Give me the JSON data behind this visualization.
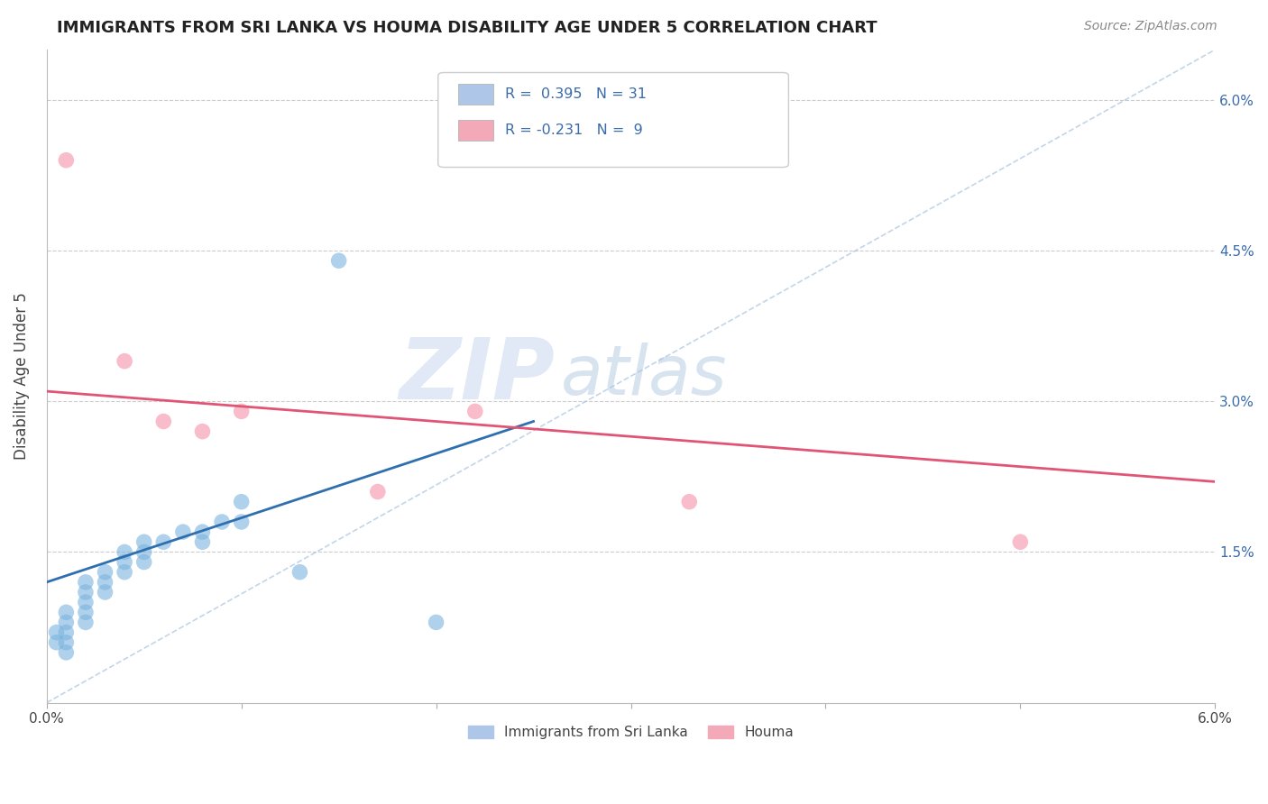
{
  "title": "IMMIGRANTS FROM SRI LANKA VS HOUMA DISABILITY AGE UNDER 5 CORRELATION CHART",
  "source": "Source: ZipAtlas.com",
  "ylabel": "Disability Age Under 5",
  "xmin": 0.0,
  "xmax": 0.06,
  "ymin": 0.0,
  "ymax": 0.065,
  "yticks": [
    0.0,
    0.015,
    0.03,
    0.045,
    0.06
  ],
  "legend_entries": [
    {
      "label": "Immigrants from Sri Lanka",
      "color": "#aec6e8"
    },
    {
      "label": "Houma",
      "color": "#f4a9b8"
    }
  ],
  "r_blue": 0.395,
  "n_blue": 31,
  "r_pink": -0.231,
  "n_pink": 9,
  "blue_scatter_color": "#7ab3df",
  "pink_scatter_color": "#f490a8",
  "blue_line_color": "#2e6faf",
  "pink_line_color": "#e05575",
  "blue_line": [
    [
      0.0,
      0.012
    ],
    [
      0.025,
      0.028
    ]
  ],
  "pink_line": [
    [
      0.0,
      0.031
    ],
    [
      0.06,
      0.022
    ]
  ],
  "diag_line": [
    [
      0.0,
      0.0
    ],
    [
      0.06,
      0.065
    ]
  ],
  "blue_scatter": [
    [
      0.0005,
      0.006
    ],
    [
      0.0005,
      0.007
    ],
    [
      0.001,
      0.005
    ],
    [
      0.001,
      0.006
    ],
    [
      0.001,
      0.007
    ],
    [
      0.001,
      0.008
    ],
    [
      0.001,
      0.009
    ],
    [
      0.002,
      0.008
    ],
    [
      0.002,
      0.009
    ],
    [
      0.002,
      0.01
    ],
    [
      0.002,
      0.011
    ],
    [
      0.002,
      0.012
    ],
    [
      0.003,
      0.011
    ],
    [
      0.003,
      0.012
    ],
    [
      0.003,
      0.013
    ],
    [
      0.004,
      0.013
    ],
    [
      0.004,
      0.014
    ],
    [
      0.004,
      0.015
    ],
    [
      0.005,
      0.014
    ],
    [
      0.005,
      0.015
    ],
    [
      0.005,
      0.016
    ],
    [
      0.006,
      0.016
    ],
    [
      0.007,
      0.017
    ],
    [
      0.008,
      0.016
    ],
    [
      0.008,
      0.017
    ],
    [
      0.009,
      0.018
    ],
    [
      0.01,
      0.018
    ],
    [
      0.01,
      0.02
    ],
    [
      0.013,
      0.013
    ],
    [
      0.015,
      0.044
    ],
    [
      0.02,
      0.008
    ]
  ],
  "pink_scatter": [
    [
      0.001,
      0.054
    ],
    [
      0.004,
      0.034
    ],
    [
      0.006,
      0.028
    ],
    [
      0.008,
      0.027
    ],
    [
      0.01,
      0.029
    ],
    [
      0.017,
      0.021
    ],
    [
      0.022,
      0.029
    ],
    [
      0.033,
      0.02
    ],
    [
      0.05,
      0.016
    ]
  ],
  "watermark_zip": "ZIP",
  "watermark_atlas": "atlas",
  "watermark_color_zip": "#c8d8ee",
  "watermark_color_atlas": "#b0c8e0",
  "background_color": "#ffffff",
  "grid_color": "#cccccc",
  "title_fontsize": 13,
  "source_fontsize": 10,
  "axis_label_color": "#555555",
  "right_tick_color": "#3a6bab"
}
